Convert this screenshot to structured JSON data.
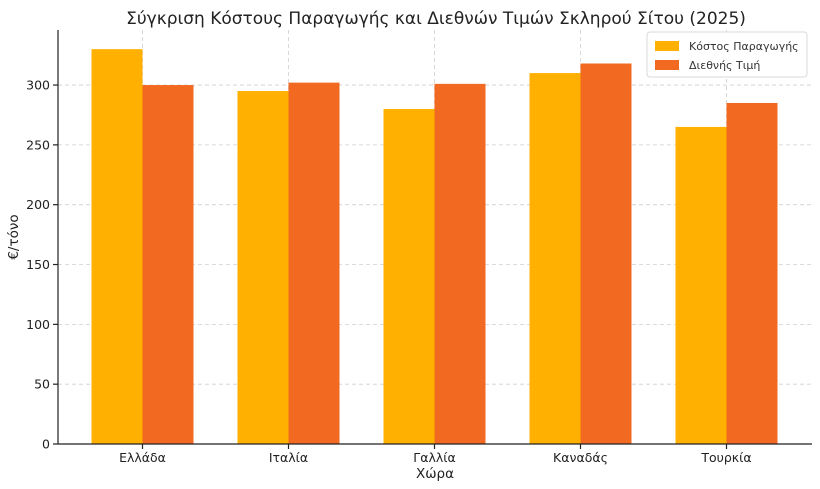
{
  "chart_data": {
    "type": "bar",
    "title": "Σύγκριση Κόστους Παραγωγής και Διεθνών Τιμών Σκληρού Σίτου (2025)",
    "xlabel": "Χώρα",
    "ylabel": "€/τόνο",
    "categories": [
      "Ελλάδα",
      "Ιταλία",
      "Γαλλία",
      "Καναδάς",
      "Τουρκία"
    ],
    "series": [
      {
        "name": "Κόστος Παραγωγής",
        "values": [
          330,
          295,
          280,
          310,
          265
        ],
        "color": "#FFB000"
      },
      {
        "name": "Διεθνής Τιμή",
        "values": [
          300,
          302,
          301,
          318,
          285
        ],
        "color": "#F26A21"
      }
    ],
    "ylim": [
      0,
      346
    ],
    "yticks": [
      0,
      50,
      100,
      150,
      200,
      250,
      300
    ],
    "grid": true,
    "legend": "top-right"
  }
}
